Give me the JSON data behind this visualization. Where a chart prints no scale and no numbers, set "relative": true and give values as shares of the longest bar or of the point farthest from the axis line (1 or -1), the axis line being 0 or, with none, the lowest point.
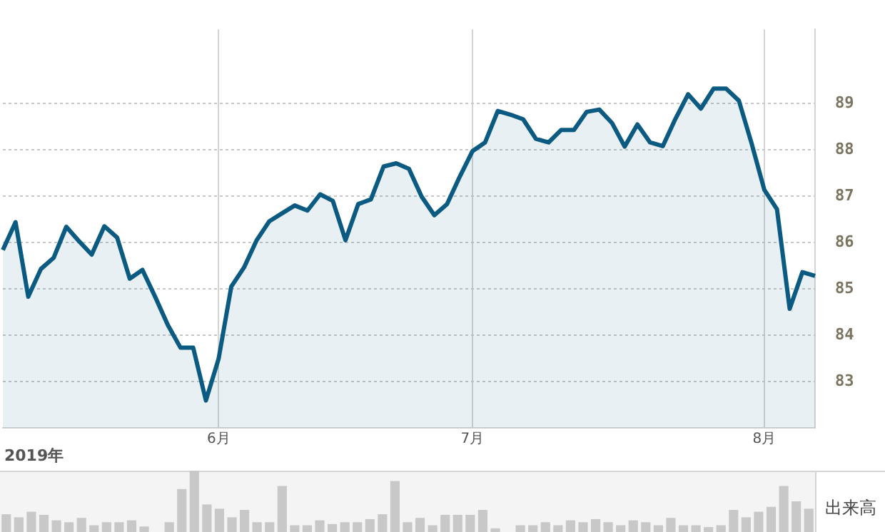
{
  "chart_data": [
    {
      "type": "area",
      "color": "#0b5a82",
      "categories": [
        null,
        null,
        null,
        null,
        null,
        null,
        null,
        null,
        null,
        null,
        null,
        null,
        null,
        null,
        null,
        null,
        null,
        "6月",
        null,
        null,
        null,
        null,
        null,
        null,
        null,
        null,
        null,
        null,
        null,
        null,
        null,
        null,
        null,
        null,
        null,
        null,
        null,
        "7月",
        null,
        null,
        null,
        null,
        null,
        null,
        null,
        null,
        null,
        null,
        null,
        null,
        null,
        null,
        null,
        null,
        null,
        null,
        null,
        null,
        null,
        null,
        "8月",
        null,
        null,
        null,
        null
      ],
      "values": [
        85.84,
        86.44,
        84.83,
        85.43,
        85.67,
        86.34,
        86.03,
        85.74,
        86.35,
        86.11,
        85.22,
        85.41,
        84.83,
        84.22,
        83.73,
        83.73,
        82.59,
        83.49,
        85.05,
        85.46,
        86.05,
        86.46,
        86.63,
        86.8,
        86.69,
        87.04,
        86.9,
        86.05,
        86.83,
        86.93,
        87.64,
        87.71,
        87.59,
        86.99,
        86.59,
        86.83,
        87.42,
        87.97,
        88.16,
        88.84,
        88.76,
        88.66,
        88.24,
        88.16,
        88.43,
        88.43,
        88.82,
        88.87,
        88.58,
        88.07,
        88.55,
        88.16,
        88.08,
        88.67,
        89.2,
        88.89,
        89.32,
        89.32,
        89.06,
        88.14,
        87.14,
        86.72,
        84.57,
        85.36,
        85.28
      ],
      "ylim": [
        82,
        90.6
      ],
      "yticks": [
        83,
        84,
        85,
        86,
        87,
        88,
        89
      ],
      "grid": true,
      "annotations": [
        "2019年"
      ]
    },
    {
      "type": "bar",
      "color": "#c8c8c8",
      "relative": true,
      "ylabel": "出来高",
      "categories": [
        null,
        null,
        null,
        null,
        null,
        null,
        null,
        null,
        null,
        null,
        null,
        null,
        null,
        null,
        null,
        null,
        null,
        null,
        null,
        null,
        null,
        null,
        null,
        null,
        null,
        null,
        null,
        null,
        null,
        null,
        null,
        null,
        null,
        null,
        null,
        null,
        null,
        null,
        null,
        null,
        null,
        null,
        null,
        null,
        null,
        null,
        null,
        null,
        null,
        null,
        null,
        null,
        null,
        null,
        null,
        null,
        null,
        null,
        null,
        null,
        null,
        null,
        null,
        null,
        null
      ],
      "values": [
        0.29,
        0.24,
        0.33,
        0.28,
        0.19,
        0.16,
        0.23,
        0.11,
        0.16,
        0.16,
        0.19,
        0.09,
        null,
        0.16,
        0.7,
        1,
        0.45,
        0.38,
        0.24,
        0.36,
        0.16,
        0.16,
        0.75,
        0.11,
        0.11,
        0.19,
        0.13,
        0.16,
        0.16,
        0.21,
        0.29,
        0.83,
        0.16,
        0.23,
        0.11,
        0.28,
        0.28,
        0.28,
        0.36,
        0.06,
        null,
        0.11,
        0.11,
        0.16,
        0.11,
        0.19,
        0.16,
        0.21,
        0.16,
        0.11,
        0.19,
        0.16,
        0.11,
        0.23,
        0.11,
        0.11,
        0.08,
        0.11,
        0.36,
        0.24,
        0.33,
        0.41,
        0.75,
        0.5,
        0.38
      ]
    }
  ]
}
